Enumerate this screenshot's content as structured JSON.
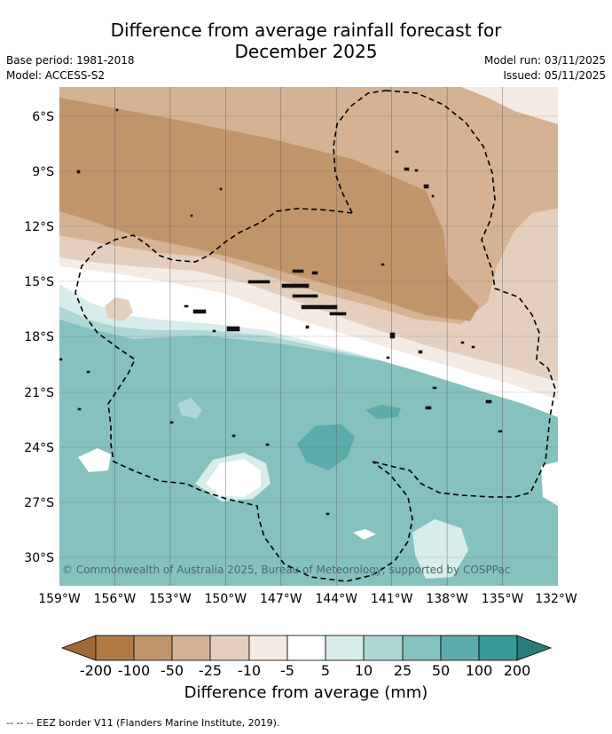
{
  "header": {
    "title_line1": "Difference from average rainfall forecast for",
    "title_line2": "December 2025",
    "base_period": "Base period: 1981-2018",
    "model": "Model: ACCESS-S2",
    "model_run": "Model run: 03/11/2025",
    "issued": "Issued: 05/11/2025"
  },
  "map": {
    "lon_labels": [
      "159°W",
      "156°W",
      "153°W",
      "150°W",
      "147°W",
      "144°W",
      "141°W",
      "138°W",
      "135°W",
      "132°W"
    ],
    "lat_labels": [
      "6°S",
      "9°S",
      "12°S",
      "15°S",
      "18°S",
      "21°S",
      "24°S",
      "27°S",
      "30°S"
    ],
    "copyright": "© Commonwealth of Australia 2025, Bureau of Meteorology, supported by COSPPac"
  },
  "colorbar": {
    "ticks": [
      "-200",
      "-100",
      "-50",
      "-25",
      "-10",
      "-5",
      "5",
      "10",
      "25",
      "50",
      "100",
      "200"
    ],
    "colors": {
      "lt_-200": "#a0693a",
      "-200_-100": "#b07a45",
      "-100_-50": "#c1956a",
      "-50_-25": "#d4b293",
      "-25_-10": "#e4cfbe",
      "-10_-5": "#f4ebe4",
      "-5_5": "#ffffff",
      "5_10": "#d8ecec",
      "10_25": "#add6d5",
      "25_50": "#84c1bf",
      "50_100": "#5bacaa",
      "100_200": "#359a97",
      "gt_200": "#2a7c79"
    },
    "label": "Difference from average (mm)"
  },
  "footnote": "--  --  -- EEZ border V11 (Flanders Marine Institute, 2019)."
}
